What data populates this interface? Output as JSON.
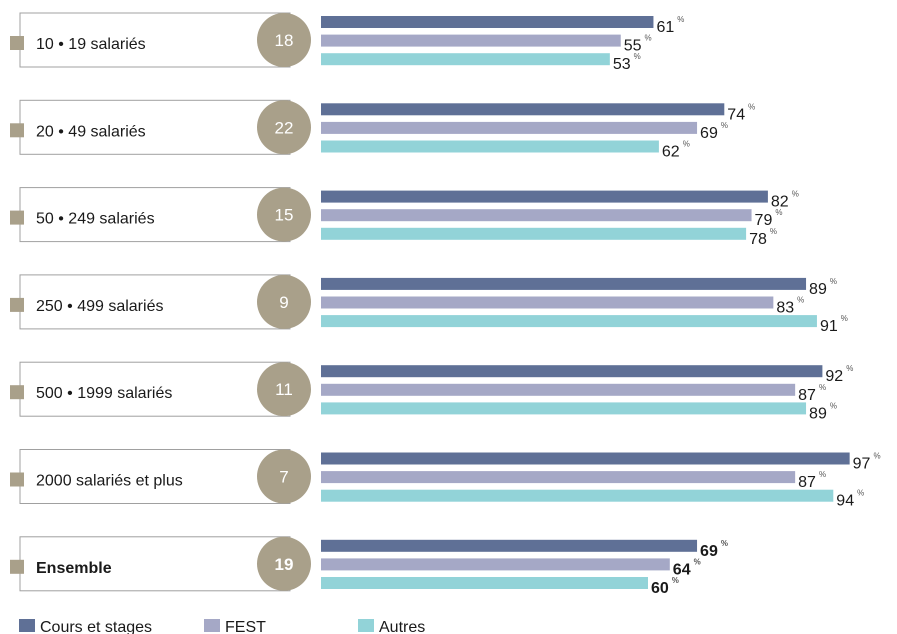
{
  "chart_data": {
    "type": "bar",
    "orientation": "horizontal",
    "unit": "%",
    "categories": [
      "10 • 19 salariés",
      "20 • 49 salariés",
      "50 • 249 salariés",
      "250 • 499 salariés",
      "500 • 1999 salariés",
      "2000 salariés et plus",
      "Ensemble"
    ],
    "circle_values": [
      18,
      22,
      15,
      9,
      11,
      7,
      19
    ],
    "circle_color": "#a9a08a",
    "highlight_last": true,
    "xlim": [
      0,
      100
    ],
    "series": [
      {
        "name": "Cours et stages",
        "color": "#5f7096",
        "values": [
          61,
          74,
          82,
          89,
          92,
          97,
          69
        ]
      },
      {
        "name": "FEST",
        "color": "#a5a8c6",
        "values": [
          55,
          69,
          79,
          83,
          87,
          87,
          64
        ]
      },
      {
        "name": "Autres",
        "color": "#92d3d8",
        "values": [
          53,
          62,
          78,
          91,
          89,
          94,
          60
        ]
      }
    ]
  }
}
